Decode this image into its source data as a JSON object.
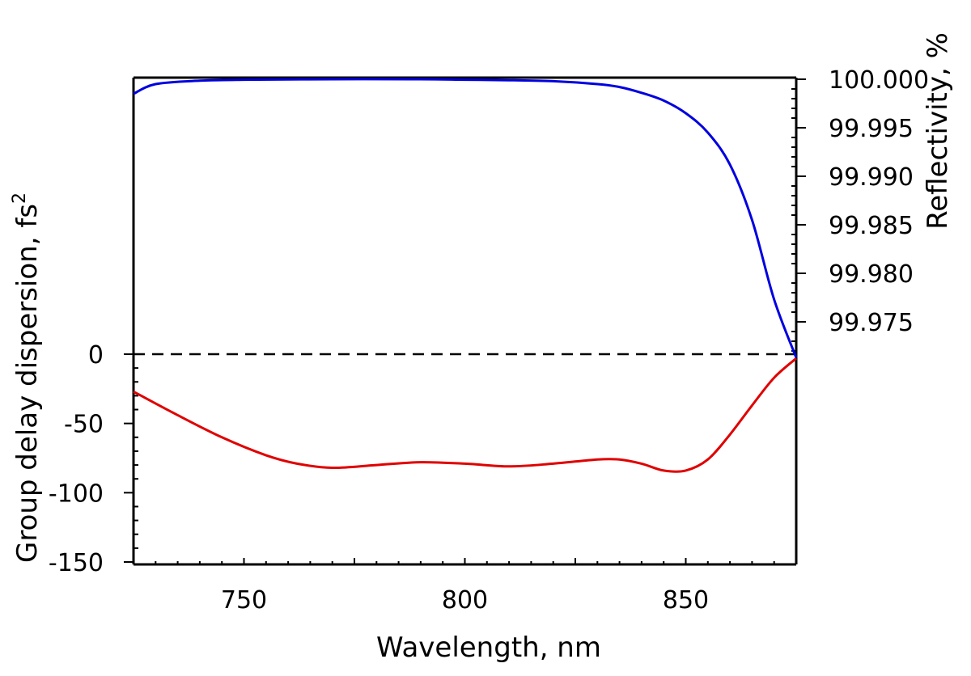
{
  "chart_data": {
    "type": "line",
    "xlabel": "Wavelength, nm",
    "ylabel_left": "Group delay dispersion, fs",
    "ylabel_left_sup": "2",
    "ylabel_right": "Reflectivity, %",
    "xlim": [
      725,
      875
    ],
    "x_ticks": [
      750,
      800,
      850
    ],
    "y_left_ticks": [
      0,
      -50,
      -100,
      -150
    ],
    "y_right_ticks": [
      "100.000",
      "99.995",
      "99.990",
      "99.985",
      "99.980",
      "99.975"
    ],
    "reference_line": {
      "axis": "left",
      "y": 0,
      "style": "dashed"
    },
    "series": [
      {
        "axis": "left",
        "color": "#e00000",
        "x": [
          725,
          735,
          745,
          755,
          762,
          770,
          780,
          790,
          800,
          810,
          820,
          830,
          835,
          840,
          845,
          850,
          855,
          860,
          865,
          870,
          875
        ],
        "y": [
          -27,
          -44,
          -60,
          -73,
          -79,
          -82,
          -80,
          -78,
          -79,
          -81,
          -79,
          -76,
          -76,
          -79,
          -84,
          -84,
          -76,
          -58,
          -37,
          -17,
          -3
        ]
      },
      {
        "axis": "right",
        "color": "#0000e0",
        "x": [
          725,
          730,
          740,
          750,
          770,
          790,
          800,
          810,
          820,
          830,
          835,
          840,
          845,
          850,
          855,
          860,
          865,
          870,
          875
        ],
        "y": [
          99.9985,
          99.9995,
          99.99985,
          99.99995,
          100.0,
          100.0,
          99.99995,
          99.9999,
          99.9998,
          99.9995,
          99.9992,
          99.9986,
          99.9978,
          99.9965,
          99.9945,
          99.9912,
          99.9855,
          99.9773,
          99.9713
        ]
      }
    ]
  }
}
